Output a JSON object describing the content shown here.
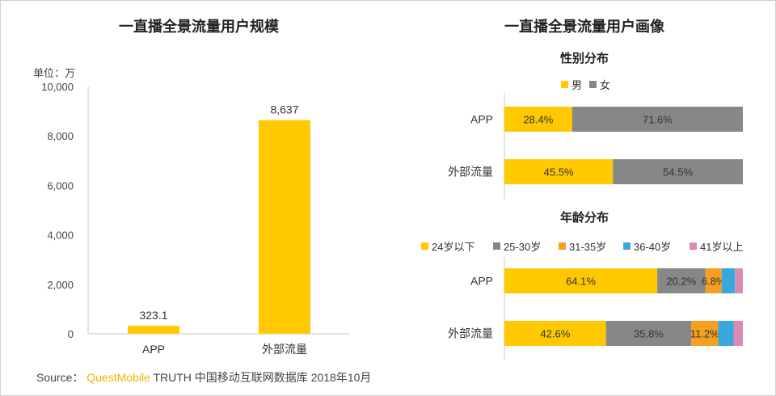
{
  "source": {
    "prefix": "Source：",
    "brand": "QuestMobile",
    "suffix": "TRUTH 中国移动互联网数据库 2018年10月"
  },
  "chart_data": [
    {
      "type": "bar",
      "title": "一直播全景流量用户规模",
      "unit_label": "单位：万",
      "categories": [
        "APP",
        "外部流量"
      ],
      "values": [
        323.1,
        8637
      ],
      "value_labels": [
        "323.1",
        "8,637"
      ],
      "ylim": [
        0,
        10000
      ],
      "yticks": [
        0,
        2000,
        4000,
        6000,
        8000,
        10000
      ],
      "ytick_labels": [
        "0",
        "2,000",
        "4,000",
        "6,000",
        "8,000",
        "10,000"
      ],
      "color": "#FFC800",
      "grid": false
    },
    {
      "type": "bar",
      "orientation": "horizontal-stacked",
      "title": "一直播全景流量用户画像",
      "subtitle": "性别分布",
      "categories": [
        "APP",
        "外部流量"
      ],
      "legend_position": "top",
      "series": [
        {
          "name": "男",
          "color": "#FFC800",
          "values": [
            28.4,
            45.5
          ],
          "labels": [
            "28.4%",
            "45.5%"
          ]
        },
        {
          "name": "女",
          "color": "#878787",
          "values": [
            71.6,
            54.5
          ],
          "labels": [
            "71.6%",
            "54.5%"
          ]
        }
      ]
    },
    {
      "type": "bar",
      "orientation": "horizontal-stacked",
      "subtitle": "年龄分布",
      "categories": [
        "APP",
        "外部流量"
      ],
      "legend_position": "top",
      "series": [
        {
          "name": "24岁以下",
          "color": "#FFC800",
          "values": [
            64.1,
            42.6
          ],
          "labels": [
            "64.1%",
            "42.6%"
          ]
        },
        {
          "name": "25-30岁",
          "color": "#878787",
          "values": [
            20.2,
            35.8
          ],
          "labels": [
            "20.2%",
            "35.8%"
          ]
        },
        {
          "name": "31-35岁",
          "color": "#F5A023",
          "values": [
            6.8,
            11.2
          ],
          "labels": [
            "6.8%",
            "11.2%"
          ]
        },
        {
          "name": "36-40岁",
          "color": "#3AA7DC",
          "values": [
            5.6,
            6.5
          ],
          "labels": [
            "",
            ""
          ]
        },
        {
          "name": "41岁以上",
          "color": "#D98BB5",
          "values": [
            3.3,
            3.9
          ],
          "labels": [
            "",
            ""
          ]
        }
      ]
    }
  ]
}
